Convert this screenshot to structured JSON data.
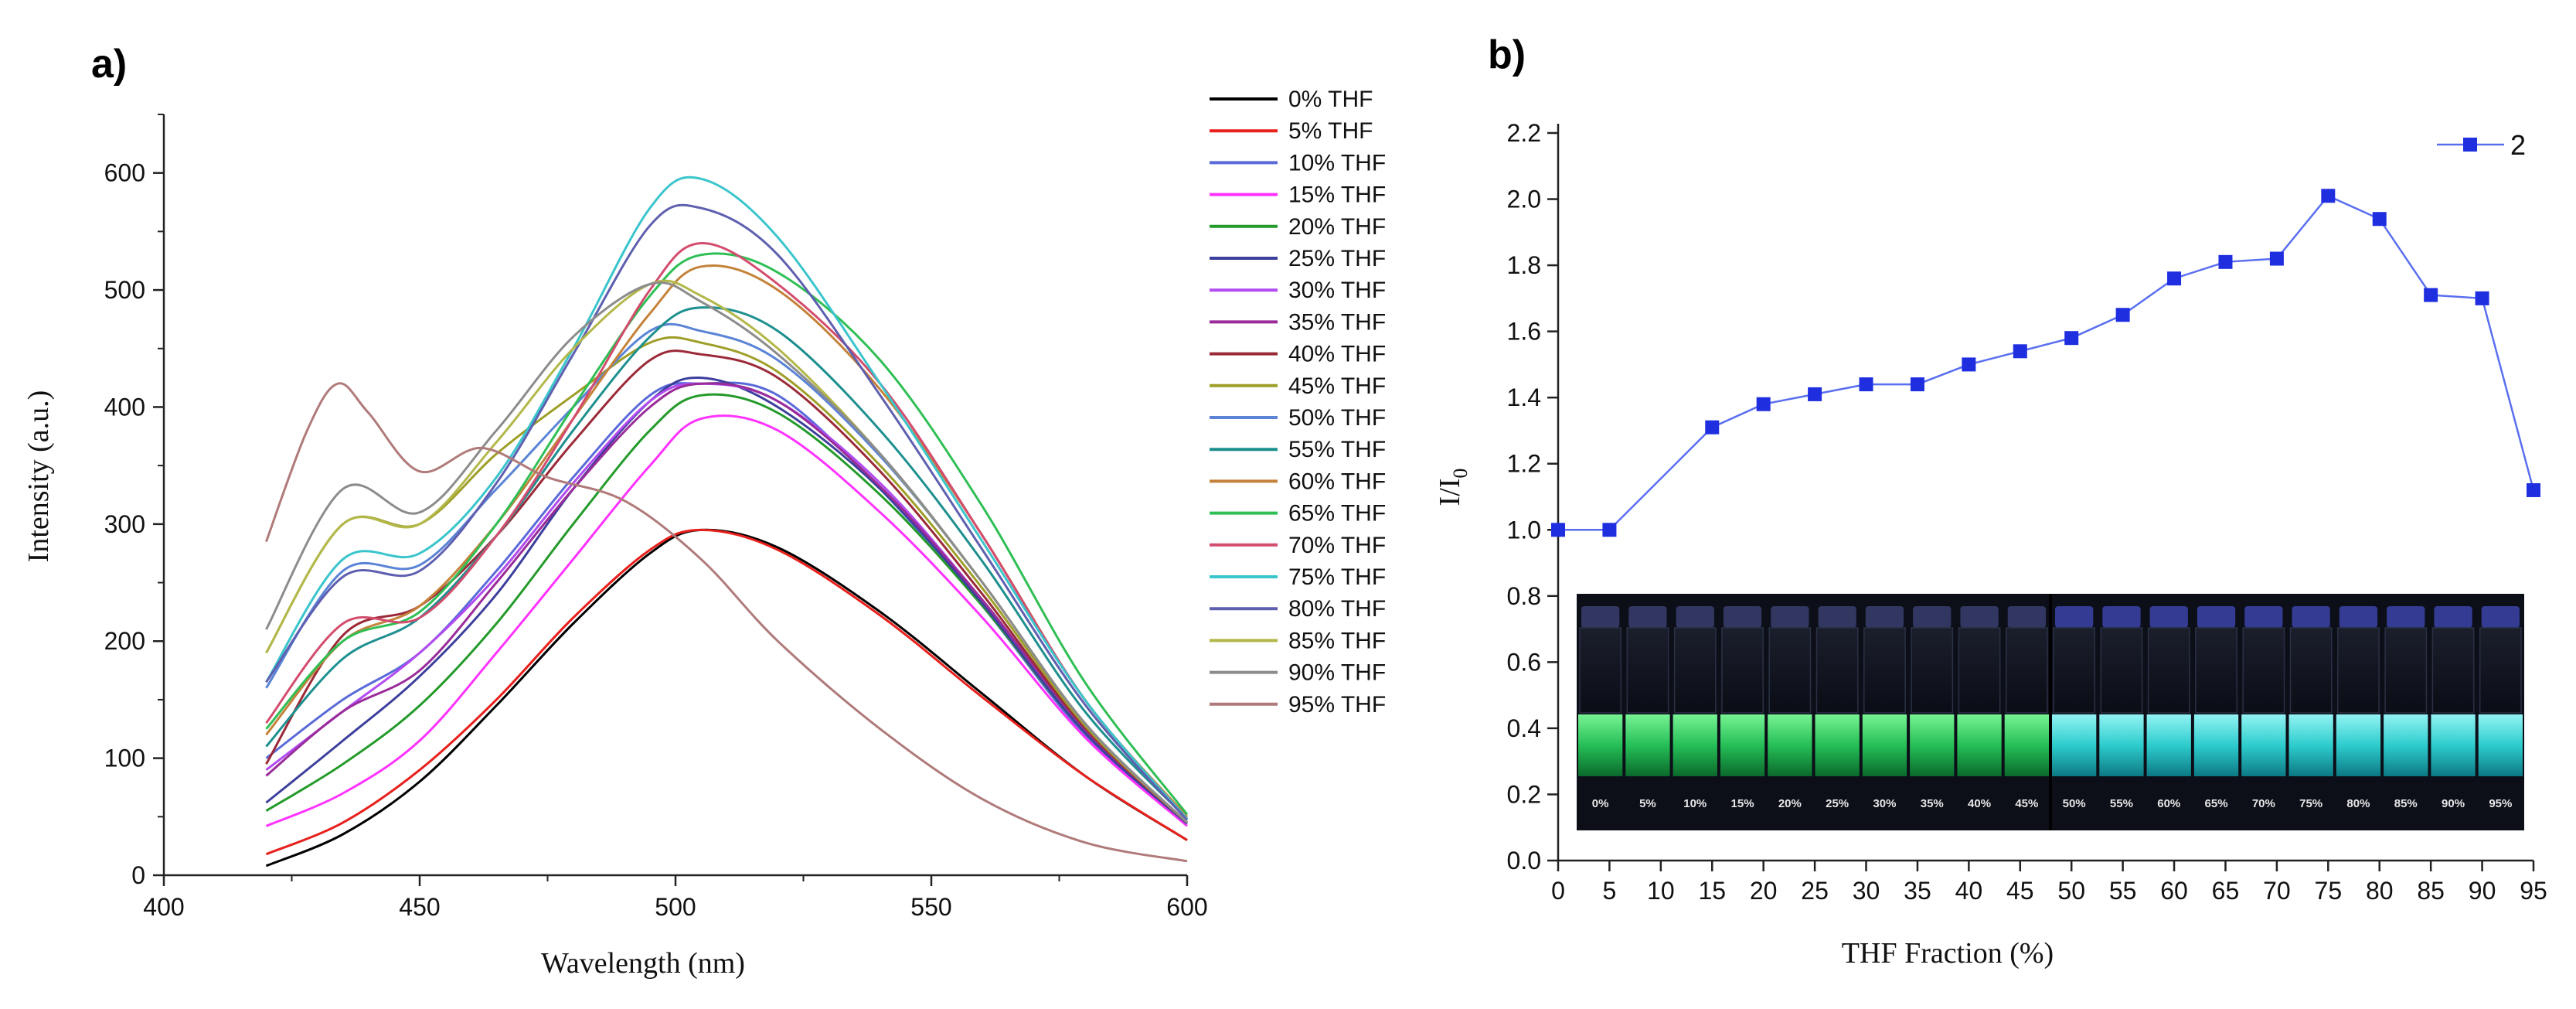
{
  "panel_a_label": "a)",
  "panel_b_label": "b)",
  "chart_data": [
    {
      "type": "line",
      "xlabel": "Wavelength (nm)",
      "ylabel": "Intensity (a.u.)",
      "xlim": [
        400,
        600
      ],
      "ylim": [
        0,
        650
      ],
      "xticks": [
        400,
        450,
        500,
        550,
        600
      ],
      "yticks": [
        0,
        100,
        200,
        300,
        400,
        500,
        600
      ],
      "legend_position": "right",
      "series": [
        {
          "name": "0% THF",
          "color": "#000000",
          "x": [
            420,
            435,
            450,
            465,
            480,
            495,
            505,
            520,
            540,
            560,
            580,
            600
          ],
          "y": [
            8,
            35,
            80,
            145,
            215,
            275,
            295,
            280,
            225,
            155,
            85,
            30
          ]
        },
        {
          "name": "5% THF",
          "color": "#e8201c",
          "x": [
            420,
            435,
            450,
            465,
            480,
            495,
            505,
            520,
            540,
            560,
            580,
            600
          ],
          "y": [
            18,
            45,
            90,
            150,
            220,
            278,
            295,
            278,
            222,
            152,
            85,
            30
          ]
        },
        {
          "name": "10% THF",
          "color": "#5a6bd8",
          "x": [
            420,
            435,
            450,
            465,
            480,
            495,
            505,
            520,
            540,
            560,
            580,
            600
          ],
          "y": [
            100,
            150,
            190,
            260,
            340,
            410,
            420,
            410,
            330,
            230,
            120,
            45
          ]
        },
        {
          "name": "15% THF",
          "color": "#ff33ff",
          "x": [
            420,
            435,
            450,
            465,
            480,
            495,
            505,
            520,
            540,
            560,
            580,
            600
          ],
          "y": [
            42,
            70,
            115,
            190,
            270,
            350,
            390,
            380,
            310,
            220,
            118,
            42
          ]
        },
        {
          "name": "20% THF",
          "color": "#249a2a",
          "x": [
            420,
            435,
            450,
            465,
            480,
            495,
            505,
            520,
            540,
            560,
            580,
            600
          ],
          "y": [
            55,
            95,
            145,
            215,
            300,
            380,
            410,
            395,
            325,
            230,
            122,
            45
          ]
        },
        {
          "name": "25% THF",
          "color": "#3c3f9c",
          "x": [
            420,
            435,
            450,
            465,
            480,
            495,
            505,
            520,
            540,
            560,
            580,
            600
          ],
          "y": [
            62,
            115,
            170,
            240,
            330,
            405,
            425,
            400,
            330,
            232,
            122,
            44
          ]
        },
        {
          "name": "30% THF",
          "color": "#b24bf0",
          "x": [
            420,
            435,
            450,
            465,
            480,
            495,
            505,
            520,
            540,
            560,
            580,
            600
          ],
          "y": [
            90,
            140,
            190,
            255,
            335,
            405,
            420,
            405,
            335,
            235,
            125,
            45
          ]
        },
        {
          "name": "35% THF",
          "color": "#992c99",
          "x": [
            420,
            435,
            450,
            465,
            480,
            495,
            505,
            520,
            540,
            560,
            580,
            600
          ],
          "y": [
            85,
            140,
            175,
            250,
            330,
            400,
            420,
            405,
            332,
            235,
            125,
            45
          ]
        },
        {
          "name": "40% THF",
          "color": "#9b2a38",
          "x": [
            420,
            435,
            450,
            465,
            480,
            495,
            505,
            520,
            540,
            560,
            580,
            600
          ],
          "y": [
            95,
            205,
            230,
            290,
            370,
            440,
            445,
            425,
            345,
            240,
            126,
            45
          ]
        },
        {
          "name": "45% THF",
          "color": "#9e9e28",
          "x": [
            420,
            435,
            450,
            465,
            480,
            495,
            505,
            520,
            540,
            560,
            580,
            600
          ],
          "y": [
            190,
            300,
            300,
            360,
            410,
            455,
            455,
            430,
            350,
            245,
            128,
            45
          ]
        },
        {
          "name": "50% THF",
          "color": "#5b84d6",
          "x": [
            420,
            435,
            450,
            465,
            480,
            495,
            505,
            520,
            540,
            560,
            580,
            600
          ],
          "y": [
            160,
            260,
            265,
            330,
            400,
            465,
            465,
            440,
            358,
            250,
            130,
            45
          ]
        },
        {
          "name": "55% THF",
          "color": "#1e8f8f",
          "x": [
            420,
            435,
            450,
            465,
            480,
            495,
            505,
            520,
            540,
            560,
            580,
            600
          ],
          "y": [
            110,
            185,
            220,
            290,
            380,
            460,
            485,
            465,
            380,
            268,
            140,
            48
          ]
        },
        {
          "name": "60% THF",
          "color": "#c4823a",
          "x": [
            420,
            435,
            450,
            465,
            480,
            495,
            505,
            520,
            540,
            560,
            580,
            600
          ],
          "y": [
            120,
            200,
            230,
            300,
            390,
            480,
            520,
            500,
            415,
            290,
            150,
            50
          ]
        },
        {
          "name": "65% THF",
          "color": "#2fbf55",
          "x": [
            420,
            435,
            450,
            465,
            480,
            495,
            505,
            520,
            540,
            560,
            580,
            600
          ],
          "y": [
            125,
            200,
            225,
            300,
            400,
            495,
            530,
            515,
            440,
            315,
            165,
            52
          ]
        },
        {
          "name": "70% THF",
          "color": "#d34d6e",
          "x": [
            420,
            435,
            450,
            465,
            480,
            495,
            505,
            520,
            540,
            560,
            580,
            600
          ],
          "y": [
            130,
            215,
            220,
            290,
            390,
            500,
            540,
            505,
            420,
            290,
            150,
            48
          ]
        },
        {
          "name": "75% THF",
          "color": "#3ac5cc",
          "x": [
            420,
            435,
            450,
            465,
            480,
            495,
            505,
            520,
            540,
            560,
            580,
            600
          ],
          "y": [
            165,
            270,
            275,
            340,
            450,
            570,
            595,
            545,
            420,
            285,
            150,
            48
          ]
        },
        {
          "name": "80% THF",
          "color": "#5f5fb0",
          "x": [
            420,
            435,
            450,
            465,
            480,
            495,
            505,
            520,
            540,
            560,
            580,
            600
          ],
          "y": [
            165,
            255,
            260,
            335,
            445,
            555,
            570,
            530,
            410,
            278,
            146,
            47
          ]
        },
        {
          "name": "85% THF",
          "color": "#b3b84a",
          "x": [
            420,
            435,
            450,
            465,
            480,
            495,
            505,
            520,
            540,
            560,
            580,
            600
          ],
          "y": [
            190,
            300,
            300,
            370,
            450,
            505,
            495,
            450,
            360,
            250,
            130,
            45
          ]
        },
        {
          "name": "90% THF",
          "color": "#8c8c8c",
          "x": [
            420,
            435,
            450,
            465,
            480,
            495,
            505,
            520,
            540,
            560,
            580,
            600
          ],
          "y": [
            210,
            330,
            310,
            380,
            460,
            505,
            490,
            445,
            360,
            250,
            130,
            45
          ]
        },
        {
          "name": "95% THF",
          "color": "#b07a7a",
          "x": [
            420,
            428,
            434,
            440,
            450,
            462,
            475,
            490,
            505,
            520,
            540,
            560,
            580,
            600
          ],
          "y": [
            285,
            380,
            420,
            395,
            345,
            365,
            340,
            320,
            270,
            200,
            125,
            65,
            28,
            12
          ]
        }
      ]
    },
    {
      "type": "line",
      "xlabel": "THF Fraction (%)",
      "ylabel": "I/I",
      "ylabel_sub": "0",
      "xlim": [
        0,
        95
      ],
      "ylim": [
        0,
        2.2
      ],
      "xticks": [
        0,
        5,
        10,
        15,
        20,
        25,
        30,
        35,
        40,
        45,
        50,
        55,
        60,
        65,
        70,
        75,
        80,
        85,
        90,
        95
      ],
      "yticks": [
        "0.0",
        "0.2",
        "0.4",
        "0.6",
        "0.8",
        "1.0",
        "1.2",
        "1.4",
        "1.6",
        "1.8",
        "2.0",
        "2.2"
      ],
      "legend_position": "top-right",
      "series": [
        {
          "name": "2",
          "color": "#1f2fe0",
          "x": [
            0,
            5,
            15,
            20,
            25,
            30,
            35,
            40,
            45,
            50,
            55,
            60,
            65,
            70,
            75,
            80,
            85,
            90,
            95
          ],
          "y": [
            1.0,
            1.0,
            1.31,
            1.38,
            1.41,
            1.44,
            1.44,
            1.5,
            1.54,
            1.58,
            1.65,
            1.76,
            1.81,
            1.82,
            2.01,
            1.94,
            1.71,
            1.7,
            1.12
          ]
        }
      ],
      "inset_photo_labels": [
        "0%",
        "5%",
        "10%",
        "15%",
        "20%",
        "25%",
        "30%",
        "35%",
        "40%",
        "45%",
        "50%",
        "55%",
        "60%",
        "65%",
        "70%",
        "75%",
        "80%",
        "85%",
        "90%",
        "95%"
      ]
    }
  ]
}
